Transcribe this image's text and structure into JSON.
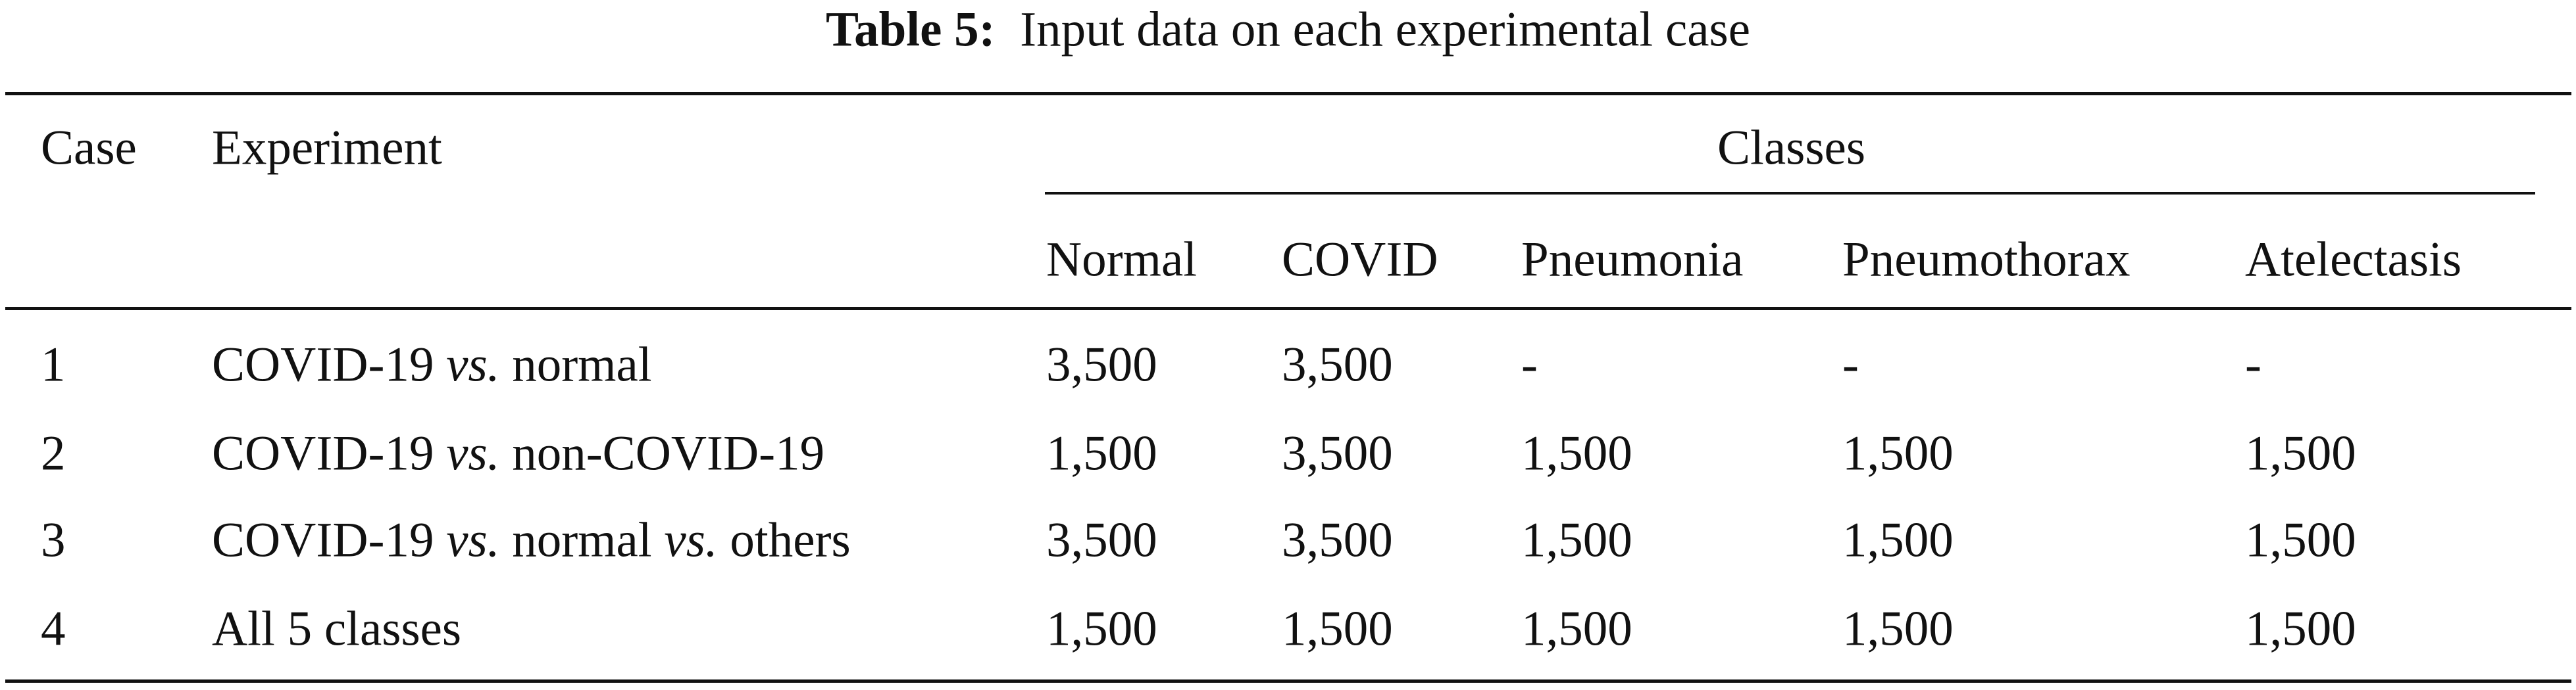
{
  "caption": {
    "label": "Table 5:",
    "text": "Input data on each experimental case"
  },
  "table": {
    "header": {
      "case": "Case",
      "experiment": "Experiment",
      "group": "Classes",
      "classes": [
        "Normal",
        "COVID",
        "Pneumonia",
        "Pneumothorax",
        "Atelectasis"
      ]
    },
    "rows": [
      {
        "case": "1",
        "experiment": [
          "COVID-19 ",
          "vs.",
          " normal"
        ],
        "counts": [
          "3,500",
          "3,500",
          "-",
          "-",
          "-"
        ]
      },
      {
        "case": "2",
        "experiment": [
          "COVID-19 ",
          "vs.",
          " non-COVID-19"
        ],
        "counts": [
          "1,500",
          "3,500",
          "1,500",
          "1,500",
          "1,500"
        ]
      },
      {
        "case": "3",
        "experiment": [
          "COVID-19 ",
          "vs.",
          " normal ",
          "vs.",
          " others"
        ],
        "counts": [
          "3,500",
          "3,500",
          "1,500",
          "1,500",
          "1,500"
        ]
      },
      {
        "case": "4",
        "experiment": [
          "All 5 classes"
        ],
        "counts": [
          "1,500",
          "1,500",
          "1,500",
          "1,500",
          "1,500"
        ]
      }
    ]
  }
}
